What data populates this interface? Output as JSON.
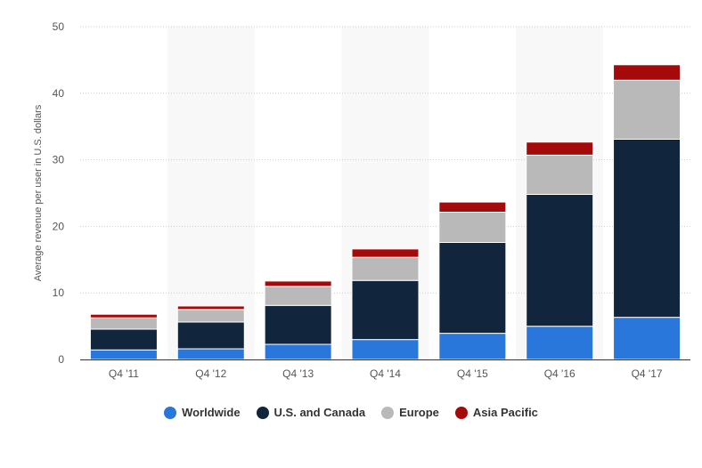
{
  "chart_data": {
    "type": "bar",
    "stacked": true,
    "categories": [
      "Q4 '11",
      "Q4 '12",
      "Q4 '13",
      "Q4 '14",
      "Q4 '15",
      "Q4 '16",
      "Q4 '17"
    ],
    "series": [
      {
        "name": "Worldwide",
        "color": "#2a77dc",
        "values": [
          1.43,
          1.6,
          2.27,
          2.99,
          3.93,
          4.99,
          6.33
        ]
      },
      {
        "name": "U.S. and Canada",
        "color": "#11263c",
        "values": [
          3.12,
          4.02,
          5.85,
          8.88,
          13.65,
          19.81,
          26.76
        ]
      },
      {
        "name": "Europe",
        "color": "#b9b9b9",
        "values": [
          1.7,
          1.88,
          2.86,
          3.48,
          4.55,
          5.9,
          8.86
        ]
      },
      {
        "name": "Asia Pacific",
        "color": "#a50a0a",
        "values": [
          0.54,
          0.53,
          0.8,
          1.25,
          1.52,
          1.96,
          2.33
        ]
      }
    ],
    "ylabel": "Average revenue per user in U.S. dollars",
    "xlabel": "",
    "ylim": [
      0,
      50
    ],
    "yticks": [
      0,
      10,
      20,
      30,
      40,
      50
    ],
    "grid": true,
    "legend": "bottom"
  }
}
